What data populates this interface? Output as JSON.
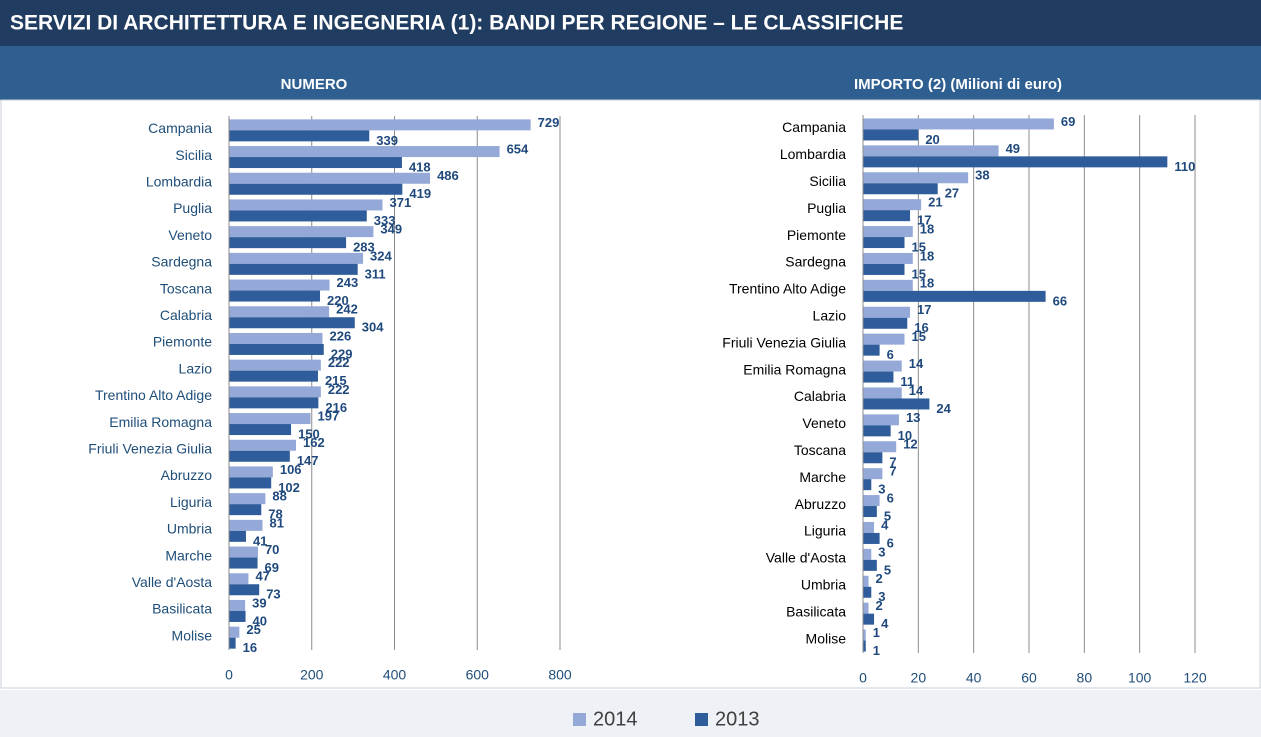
{
  "title": "SERVIZI DI ARCHITETTURA E INGEGNERIA (1): BANDI PER REGIONE – LE CLASSIFICHE",
  "chart_data": [
    {
      "type": "hbar",
      "title": "NUMERO",
      "categories": [
        "Campania",
        "Sicilia",
        "Lombardia",
        "Puglia",
        "Veneto",
        "Sardegna",
        "Toscana",
        "Calabria",
        "Piemonte",
        "Lazio",
        "Trentino Alto Adige",
        "Emilia Romagna",
        "Friuli Venezia Giulia",
        "Abruzzo",
        "Liguria",
        "Umbria",
        "Marche",
        "Valle d'Aosta",
        "Basilicata",
        "Molise"
      ],
      "series": [
        {
          "name": "2014",
          "color": "#95a9d8",
          "values": [
            729,
            654,
            486,
            371,
            349,
            324,
            243,
            242,
            226,
            222,
            222,
            197,
            162,
            106,
            88,
            81,
            70,
            47,
            39,
            25
          ]
        },
        {
          "name": "2013",
          "color": "#2f5c9a",
          "values": [
            339,
            418,
            419,
            333,
            283,
            311,
            220,
            304,
            229,
            215,
            216,
            150,
            147,
            102,
            78,
            41,
            69,
            73,
            40,
            16
          ]
        }
      ],
      "xlim": [
        0,
        800
      ],
      "xticks": [
        0,
        200,
        400,
        600,
        800
      ],
      "grid": true
    },
    {
      "type": "hbar",
      "title": "IMPORTO (2) (Milioni di euro)",
      "categories": [
        "Campania",
        "Lombardia",
        "Sicilia",
        "Puglia",
        "Piemonte",
        "Sardegna",
        "Trentino Alto Adige",
        "Lazio",
        "Friuli Venezia Giulia",
        "Emilia Romagna",
        "Calabria",
        "Veneto",
        "Toscana",
        "Marche",
        "Abruzzo",
        "Liguria",
        "Valle d'Aosta",
        "Umbria",
        "Basilicata",
        "Molise"
      ],
      "series": [
        {
          "name": "2014",
          "color": "#95a9d8",
          "values": [
            69,
            49,
            38,
            21,
            18,
            18,
            18,
            17,
            15,
            14,
            14,
            13,
            12,
            7,
            6,
            4,
            3,
            2,
            2,
            1
          ]
        },
        {
          "name": "2013",
          "color": "#2f5c9a",
          "values": [
            20,
            110,
            27,
            17,
            15,
            15,
            66,
            16,
            6,
            11,
            24,
            10,
            7,
            3,
            5,
            6,
            5,
            3,
            4,
            1
          ]
        }
      ],
      "xlim": [
        0,
        120
      ],
      "xticks": [
        0,
        20,
        40,
        60,
        80,
        100,
        120
      ],
      "grid": true
    }
  ]
}
